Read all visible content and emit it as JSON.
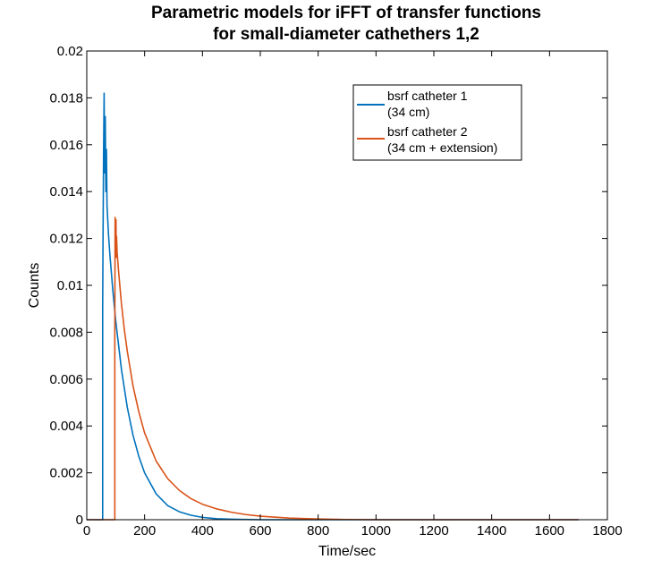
{
  "chart_data": {
    "type": "line",
    "title": [
      "Parametric models for iFFT of transfer functions",
      "for small-diameter cathethers 1,2"
    ],
    "xlabel": "Time/sec",
    "ylabel": "Counts",
    "xlim": [
      0,
      1800
    ],
    "ylim": [
      0,
      0.02
    ],
    "xticks": [
      0,
      200,
      400,
      600,
      800,
      1000,
      1200,
      1400,
      1600,
      1800
    ],
    "yticks": [
      0,
      0.002,
      0.004,
      0.006,
      0.008,
      0.01,
      0.012,
      0.014,
      0.016,
      0.018,
      0.02
    ],
    "ytick_labels": [
      "0",
      "0.002",
      "0.004",
      "0.006",
      "0.008",
      "0.01",
      "0.012",
      "0.014",
      "0.016",
      "0.018",
      "0.02"
    ],
    "grid": false,
    "legend_position": "top-right",
    "series": [
      {
        "name": "bsrf catheter 1",
        "name_line2": "(34 cm)",
        "color": "#0072bd",
        "x": [
          0,
          55,
          55,
          56,
          58,
          60,
          62,
          64,
          66,
          68,
          70,
          75,
          80,
          90,
          100,
          120,
          140,
          160,
          180,
          200,
          240,
          280,
          320,
          360,
          400,
          450,
          500,
          600,
          700,
          800,
          1000,
          1200,
          1400,
          1600,
          1700
        ],
        "y": [
          0,
          0,
          0.009,
          0.0115,
          0.0155,
          0.0182,
          0.0148,
          0.0172,
          0.014,
          0.0158,
          0.0134,
          0.0122,
          0.0113,
          0.0098,
          0.0085,
          0.0064,
          0.0048,
          0.0036,
          0.0027,
          0.002,
          0.0011,
          0.0006,
          0.00034,
          0.00019,
          0.0001,
          4e-05,
          2e-05,
          0,
          0,
          0,
          0,
          0,
          0,
          0,
          0
        ]
      },
      {
        "name": "bsrf catheter 2",
        "name_line2": "(34 cm + extension)",
        "color": "#d95319",
        "x": [
          0,
          97,
          97,
          98,
          100,
          101,
          102,
          103,
          105,
          110,
          115,
          120,
          130,
          140,
          160,
          180,
          200,
          240,
          280,
          320,
          360,
          400,
          450,
          500,
          550,
          600,
          700,
          800,
          900,
          1000,
          1200,
          1400,
          1600,
          1700
        ],
        "y": [
          0,
          0,
          0.0078,
          0.0129,
          0.0116,
          0.0128,
          0.0112,
          0.0121,
          0.0114,
          0.0106,
          0.0099,
          0.0092,
          0.0081,
          0.0072,
          0.0057,
          0.0046,
          0.0037,
          0.0025,
          0.00175,
          0.00125,
          0.0009,
          0.00066,
          0.00046,
          0.00032,
          0.00022,
          0.00015,
          7e-05,
          3e-05,
          1e-05,
          0,
          0,
          0,
          0,
          0
        ]
      }
    ]
  }
}
